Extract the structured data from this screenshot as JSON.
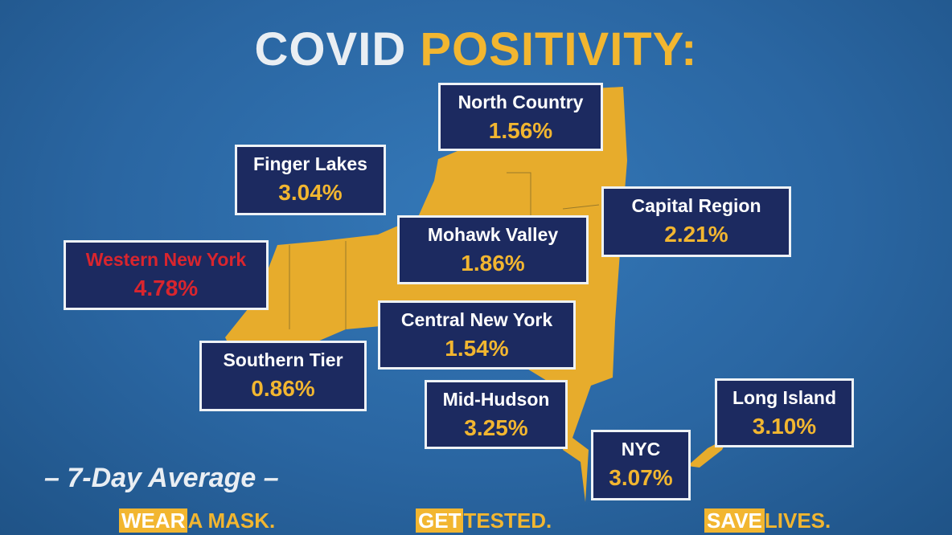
{
  "title": {
    "part1": "COVID",
    "part2": "POSITIVITY:"
  },
  "regions": [
    {
      "name": "North Country",
      "value": "1.56%",
      "color": "#f2b630"
    },
    {
      "name": "Finger Lakes",
      "value": "3.04%",
      "color": "#f2b630"
    },
    {
      "name": "Capital Region",
      "value": "2.21%",
      "color": "#f2b630"
    },
    {
      "name": "Mohawk Valley",
      "value": "1.86%",
      "color": "#f2b630"
    },
    {
      "name": "Western New York",
      "value": "4.78%",
      "color": "#d9252e"
    },
    {
      "name": "Central New York",
      "value": "1.54%",
      "color": "#f2b630"
    },
    {
      "name": "Southern Tier",
      "value": "0.86%",
      "color": "#f2b630"
    },
    {
      "name": "Mid-Hudson",
      "value": "3.25%",
      "color": "#f2b630"
    },
    {
      "name": "Long Island",
      "value": "3.10%",
      "color": "#f2b630"
    },
    {
      "name": "NYC",
      "value": "3.07%",
      "color": "#f2b630"
    }
  ],
  "note": "– 7-Day Average –",
  "slogans": [
    {
      "highlight": "WEAR",
      "rest": "A MASK."
    },
    {
      "highlight": "GET",
      "rest": "TESTED."
    },
    {
      "highlight": "SAVE",
      "rest": "LIVES."
    }
  ]
}
